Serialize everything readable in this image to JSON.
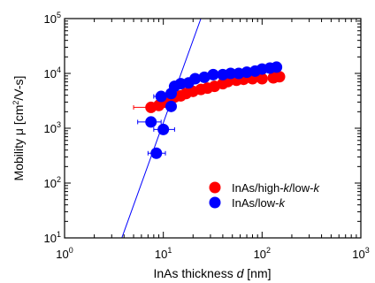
{
  "chart_data": {
    "type": "scatter",
    "xscale": "log",
    "yscale": "log",
    "xlim": [
      1,
      1000
    ],
    "ylim": [
      10,
      100000
    ],
    "xlabel_parts": [
      {
        "t": "InAs thickness ",
        "style": "normal"
      },
      {
        "t": "d",
        "style": "italic"
      },
      {
        "t": " [nm]",
        "style": "normal"
      }
    ],
    "ylabel_parts": [
      {
        "t": "Mobility μ [cm",
        "style": "normal",
        "sup": false
      },
      {
        "t": "2",
        "style": "normal",
        "sup": true
      },
      {
        "t": "/V-s]",
        "style": "normal",
        "sup": false
      }
    ],
    "xticks": [
      {
        "v": 1,
        "base": "10",
        "exp": "0"
      },
      {
        "v": 10,
        "base": "10",
        "exp": "1"
      },
      {
        "v": 100,
        "base": "10",
        "exp": "2"
      },
      {
        "v": 1000,
        "base": "10",
        "exp": "3"
      }
    ],
    "yticks": [
      {
        "v": 10,
        "base": "10",
        "exp": "1"
      },
      {
        "v": 100,
        "base": "10",
        "exp": "2"
      },
      {
        "v": 1000,
        "base": "10",
        "exp": "3"
      },
      {
        "v": 10000,
        "base": "10",
        "exp": "4"
      },
      {
        "v": 100000,
        "base": "10",
        "exp": "5"
      }
    ],
    "grid": false,
    "legend_position": "lower-right",
    "series": [
      {
        "name_parts": [
          {
            "t": "InAs/high-",
            "style": "normal"
          },
          {
            "t": "k",
            "style": "italic"
          },
          {
            "t": "/low-",
            "style": "normal"
          },
          {
            "t": "k",
            "style": "italic"
          }
        ],
        "color": "#ff0000",
        "points": [
          {
            "x": 7.5,
            "y": 2400,
            "xerr": [
              5.0,
              11.0
            ]
          },
          {
            "x": 9,
            "y": 2600,
            "xerr": [
              7.0,
              11.5
            ]
          },
          {
            "x": 10.5,
            "y": 3000,
            "xerr": [
              8.5,
              13.0
            ]
          },
          {
            "x": 11,
            "y": 3300,
            "xerr": null
          },
          {
            "x": 13,
            "y": 3700,
            "xerr": null
          },
          {
            "x": 15,
            "y": 3900,
            "xerr": null
          },
          {
            "x": 17,
            "y": 4300,
            "xerr": null
          },
          {
            "x": 20,
            "y": 4700,
            "xerr": null
          },
          {
            "x": 24,
            "y": 5100,
            "xerr": null
          },
          {
            "x": 28,
            "y": 5400,
            "xerr": null
          },
          {
            "x": 33,
            "y": 5800,
            "xerr": null
          },
          {
            "x": 40,
            "y": 6500,
            "xerr": null
          },
          {
            "x": 45,
            "y": 7100,
            "xerr": null
          },
          {
            "x": 55,
            "y": 7500,
            "xerr": null
          },
          {
            "x": 65,
            "y": 7800,
            "xerr": null
          },
          {
            "x": 80,
            "y": 8000,
            "xerr": null
          },
          {
            "x": 100,
            "y": 8000,
            "xerr": null
          },
          {
            "x": 130,
            "y": 8300,
            "xerr": null
          },
          {
            "x": 150,
            "y": 8700,
            "xerr": null
          }
        ]
      },
      {
        "name_parts": [
          {
            "t": "InAs/low-",
            "style": "normal"
          },
          {
            "t": "k",
            "style": "italic"
          }
        ],
        "color": "#0000ff",
        "points": [
          {
            "x": 8.5,
            "y": 350,
            "xerr": [
              7.0,
              10.5
            ]
          },
          {
            "x": 10,
            "y": 950,
            "xerr": [
              8.0,
              13.0
            ]
          },
          {
            "x": 7.5,
            "y": 1300,
            "xerr": [
              5.5,
              9.5
            ]
          },
          {
            "x": 12,
            "y": 2500,
            "xerr": null
          },
          {
            "x": 9.5,
            "y": 3800,
            "xerr": [
              8.0,
              12.0
            ]
          },
          {
            "x": 12,
            "y": 4300,
            "xerr": null
          },
          {
            "x": 13,
            "y": 5800,
            "xerr": null
          },
          {
            "x": 15,
            "y": 6500,
            "xerr": null
          },
          {
            "x": 18,
            "y": 6700,
            "xerr": null
          },
          {
            "x": 21,
            "y": 8000,
            "xerr": null
          },
          {
            "x": 26,
            "y": 8500,
            "xerr": null
          },
          {
            "x": 32,
            "y": 9500,
            "xerr": null
          },
          {
            "x": 40,
            "y": 9500,
            "xerr": null
          },
          {
            "x": 48,
            "y": 10000,
            "xerr": null
          },
          {
            "x": 58,
            "y": 10000,
            "xerr": null
          },
          {
            "x": 70,
            "y": 10500,
            "xerr": null
          },
          {
            "x": 85,
            "y": 11000,
            "xerr": null
          },
          {
            "x": 100,
            "y": 12000,
            "xerr": null
          },
          {
            "x": 120,
            "y": 12500,
            "xerr": null
          },
          {
            "x": 140,
            "y": 13000,
            "xerr": null
          }
        ]
      }
    ],
    "fit_line": {
      "color": "#0000ff",
      "points": [
        [
          3.8,
          10
        ],
        [
          24,
          100000
        ]
      ]
    }
  }
}
